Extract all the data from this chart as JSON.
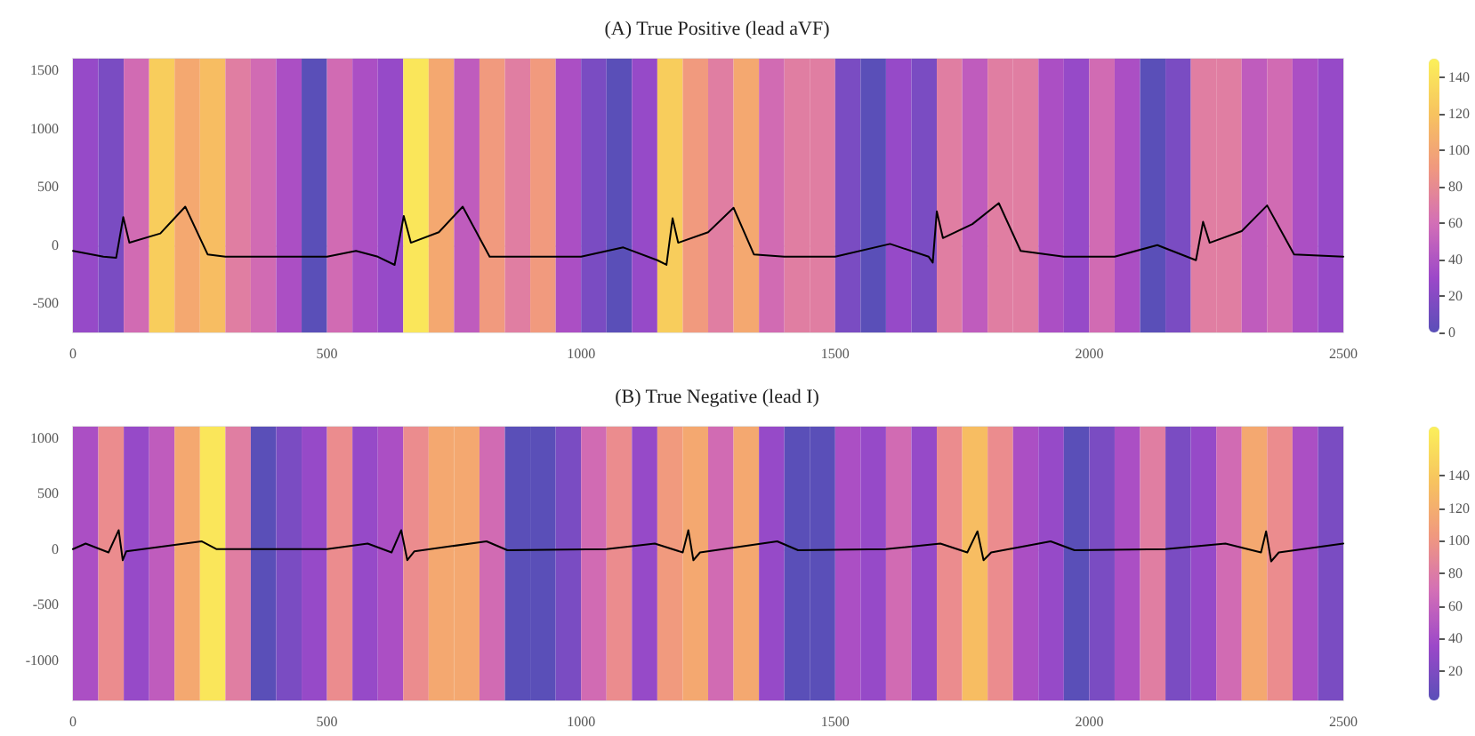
{
  "chart_data": [
    {
      "type": "line",
      "title": "(A) True Positive (lead aVF)",
      "clim": [
        0,
        150
      ],
      "cticks": [
        0,
        20,
        40,
        60,
        80,
        100,
        120,
        140
      ],
      "xlim": [
        0,
        2500
      ],
      "xticks": [
        0,
        500,
        1000,
        1500,
        2000,
        2500
      ],
      "ylim": [
        -750,
        1600
      ],
      "yticks": [
        -500,
        0,
        500,
        1000,
        1500
      ],
      "marker": "none",
      "line_style": "solid",
      "bands": [
        {
          "axis": "x",
          "from": 0,
          "to": 50,
          "color": "#964ac8"
        },
        {
          "axis": "x",
          "from": 50,
          "to": 100,
          "color": "#7a4cc2"
        },
        {
          "axis": "x",
          "from": 100,
          "to": 150,
          "color": "#d16bb3"
        },
        {
          "axis": "x",
          "from": 150,
          "to": 200,
          "color": "#f8cd5c"
        },
        {
          "axis": "x",
          "from": 200,
          "to": 250,
          "color": "#f4a870"
        },
        {
          "axis": "x",
          "from": 250,
          "to": 300,
          "color": "#f7bd62"
        },
        {
          "axis": "x",
          "from": 300,
          "to": 350,
          "color": "#e07ea2"
        },
        {
          "axis": "x",
          "from": 350,
          "to": 400,
          "color": "#d16bb3"
        },
        {
          "axis": "x",
          "from": 400,
          "to": 450,
          "color": "#ab4fc4"
        },
        {
          "axis": "x",
          "from": 450,
          "to": 500,
          "color": "#5a4fb8"
        },
        {
          "axis": "x",
          "from": 500,
          "to": 550,
          "color": "#d16bb3"
        },
        {
          "axis": "x",
          "from": 550,
          "to": 600,
          "color": "#ab4fc4"
        },
        {
          "axis": "x",
          "from": 600,
          "to": 650,
          "color": "#964ac8"
        },
        {
          "axis": "x",
          "from": 650,
          "to": 700,
          "color": "#fae65a"
        },
        {
          "axis": "x",
          "from": 700,
          "to": 750,
          "color": "#f4a870"
        },
        {
          "axis": "x",
          "from": 750,
          "to": 800,
          "color": "#bf5cbd"
        },
        {
          "axis": "x",
          "from": 800,
          "to": 850,
          "color": "#f19a7e"
        },
        {
          "axis": "x",
          "from": 850,
          "to": 900,
          "color": "#e07ea2"
        },
        {
          "axis": "x",
          "from": 900,
          "to": 950,
          "color": "#f19a7e"
        },
        {
          "axis": "x",
          "from": 950,
          "to": 1000,
          "color": "#ab4fc4"
        },
        {
          "axis": "x",
          "from": 1000,
          "to": 1050,
          "color": "#7a4cc2"
        },
        {
          "axis": "x",
          "from": 1050,
          "to": 1100,
          "color": "#5a4fb8"
        },
        {
          "axis": "x",
          "from": 1100,
          "to": 1150,
          "color": "#964ac8"
        },
        {
          "axis": "x",
          "from": 1150,
          "to": 1200,
          "color": "#f8cd5c"
        },
        {
          "axis": "x",
          "from": 1200,
          "to": 1250,
          "color": "#f19a7e"
        },
        {
          "axis": "x",
          "from": 1250,
          "to": 1300,
          "color": "#e07ea2"
        },
        {
          "axis": "x",
          "from": 1300,
          "to": 1350,
          "color": "#f4a870"
        },
        {
          "axis": "x",
          "from": 1350,
          "to": 1400,
          "color": "#d16bb3"
        },
        {
          "axis": "x",
          "from": 1400,
          "to": 1450,
          "color": "#e07ea2"
        },
        {
          "axis": "x",
          "from": 1450,
          "to": 1500,
          "color": "#e07ea2"
        },
        {
          "axis": "x",
          "from": 1500,
          "to": 1550,
          "color": "#7a4cc2"
        },
        {
          "axis": "x",
          "from": 1550,
          "to": 1600,
          "color": "#5a4fb8"
        },
        {
          "axis": "x",
          "from": 1600,
          "to": 1650,
          "color": "#964ac8"
        },
        {
          "axis": "x",
          "from": 1650,
          "to": 1700,
          "color": "#7a4cc2"
        },
        {
          "axis": "x",
          "from": 1700,
          "to": 1750,
          "color": "#e07ea2"
        },
        {
          "axis": "x",
          "from": 1750,
          "to": 1800,
          "color": "#bf5cbd"
        },
        {
          "axis": "x",
          "from": 1800,
          "to": 1850,
          "color": "#e07ea2"
        },
        {
          "axis": "x",
          "from": 1850,
          "to": 1900,
          "color": "#e07ea2"
        },
        {
          "axis": "x",
          "from": 1900,
          "to": 1950,
          "color": "#ab4fc4"
        },
        {
          "axis": "x",
          "from": 1950,
          "to": 2000,
          "color": "#964ac8"
        },
        {
          "axis": "x",
          "from": 2000,
          "to": 2050,
          "color": "#d16bb3"
        },
        {
          "axis": "x",
          "from": 2050,
          "to": 2100,
          "color": "#ab4fc4"
        },
        {
          "axis": "x",
          "from": 2100,
          "to": 2150,
          "color": "#5a4fb8"
        },
        {
          "axis": "x",
          "from": 2150,
          "to": 2200,
          "color": "#7a4cc2"
        },
        {
          "axis": "x",
          "from": 2200,
          "to": 2250,
          "color": "#e07ea2"
        },
        {
          "axis": "x",
          "from": 2250,
          "to": 2300,
          "color": "#e07ea2"
        },
        {
          "axis": "x",
          "from": 2300,
          "to": 2350,
          "color": "#bf5cbd"
        },
        {
          "axis": "x",
          "from": 2350,
          "to": 2400,
          "color": "#d16bb3"
        },
        {
          "axis": "x",
          "from": 2400,
          "to": 2450,
          "color": "#ab4fc4"
        },
        {
          "axis": "x",
          "from": 2450,
          "to": 2500,
          "color": "#964ac8"
        }
      ],
      "series": [
        {
          "color": "#000000",
          "x": [
            0,
            60,
            85,
            99,
            111,
            172,
            221,
            265,
            300,
            400,
            500,
            557,
            600,
            633,
            651,
            665,
            720,
            767,
            820,
            900,
            1000,
            1083,
            1150,
            1168,
            1180,
            1191,
            1250,
            1300,
            1340,
            1400,
            1500,
            1608,
            1684,
            1692,
            1700,
            1712,
            1770,
            1822,
            1865,
            1950,
            2050,
            2134,
            2210,
            2224,
            2237,
            2300,
            2350,
            2403,
            2500
          ],
          "values": [
            -50,
            -100,
            -110,
            240,
            20,
            100,
            330,
            -80,
            -100,
            -100,
            -100,
            -50,
            -100,
            -170,
            250,
            20,
            110,
            330,
            -100,
            -100,
            -100,
            -20,
            -130,
            -170,
            230,
            20,
            110,
            320,
            -80,
            -100,
            -100,
            10,
            -100,
            -150,
            290,
            60,
            180,
            360,
            -50,
            -100,
            -100,
            0,
            -130,
            200,
            20,
            120,
            340,
            -80,
            -100
          ]
        }
      ]
    },
    {
      "type": "line",
      "title": "(B) True Negative (lead I)",
      "clim": [
        2,
        170
      ],
      "cticks": [
        20,
        40,
        60,
        80,
        100,
        120,
        140
      ],
      "xlim": [
        0,
        2500
      ],
      "xticks": [
        0,
        500,
        1000,
        1500,
        2000,
        2500
      ],
      "ylim": [
        -1360,
        1100
      ],
      "yticks": [
        -1000,
        -500,
        0,
        500,
        1000
      ],
      "marker": "none",
      "line_style": "solid",
      "bands": [
        {
          "axis": "x",
          "from": 0,
          "to": 50,
          "color": "#ab4fc4"
        },
        {
          "axis": "x",
          "from": 50,
          "to": 100,
          "color": "#eb8c8e"
        },
        {
          "axis": "x",
          "from": 100,
          "to": 150,
          "color": "#964ac8"
        },
        {
          "axis": "x",
          "from": 150,
          "to": 200,
          "color": "#bf5cbd"
        },
        {
          "axis": "x",
          "from": 200,
          "to": 250,
          "color": "#f4a870"
        },
        {
          "axis": "x",
          "from": 250,
          "to": 300,
          "color": "#fae65a"
        },
        {
          "axis": "x",
          "from": 300,
          "to": 350,
          "color": "#e07ea2"
        },
        {
          "axis": "x",
          "from": 350,
          "to": 400,
          "color": "#5a4fb8"
        },
        {
          "axis": "x",
          "from": 400,
          "to": 450,
          "color": "#7a4cc2"
        },
        {
          "axis": "x",
          "from": 450,
          "to": 500,
          "color": "#964ac8"
        },
        {
          "axis": "x",
          "from": 500,
          "to": 550,
          "color": "#eb8c8e"
        },
        {
          "axis": "x",
          "from": 550,
          "to": 600,
          "color": "#964ac8"
        },
        {
          "axis": "x",
          "from": 600,
          "to": 650,
          "color": "#ab4fc4"
        },
        {
          "axis": "x",
          "from": 650,
          "to": 700,
          "color": "#eb8c8e"
        },
        {
          "axis": "x",
          "from": 700,
          "to": 750,
          "color": "#f4a870"
        },
        {
          "axis": "x",
          "from": 750,
          "to": 800,
          "color": "#f4a870"
        },
        {
          "axis": "x",
          "from": 800,
          "to": 850,
          "color": "#d16bb3"
        },
        {
          "axis": "x",
          "from": 850,
          "to": 900,
          "color": "#5a4fb8"
        },
        {
          "axis": "x",
          "from": 900,
          "to": 950,
          "color": "#5a4fb8"
        },
        {
          "axis": "x",
          "from": 950,
          "to": 1000,
          "color": "#7a4cc2"
        },
        {
          "axis": "x",
          "from": 1000,
          "to": 1050,
          "color": "#d16bb3"
        },
        {
          "axis": "x",
          "from": 1050,
          "to": 1100,
          "color": "#eb8c8e"
        },
        {
          "axis": "x",
          "from": 1100,
          "to": 1150,
          "color": "#964ac8"
        },
        {
          "axis": "x",
          "from": 1150,
          "to": 1200,
          "color": "#f19a7e"
        },
        {
          "axis": "x",
          "from": 1200,
          "to": 1250,
          "color": "#f4a870"
        },
        {
          "axis": "x",
          "from": 1250,
          "to": 1300,
          "color": "#d16bb3"
        },
        {
          "axis": "x",
          "from": 1300,
          "to": 1350,
          "color": "#f4a870"
        },
        {
          "axis": "x",
          "from": 1350,
          "to": 1400,
          "color": "#964ac8"
        },
        {
          "axis": "x",
          "from": 1400,
          "to": 1450,
          "color": "#5a4fb8"
        },
        {
          "axis": "x",
          "from": 1450,
          "to": 1500,
          "color": "#5a4fb8"
        },
        {
          "axis": "x",
          "from": 1500,
          "to": 1550,
          "color": "#ab4fc4"
        },
        {
          "axis": "x",
          "from": 1550,
          "to": 1600,
          "color": "#964ac8"
        },
        {
          "axis": "x",
          "from": 1600,
          "to": 1650,
          "color": "#d16bb3"
        },
        {
          "axis": "x",
          "from": 1650,
          "to": 1700,
          "color": "#964ac8"
        },
        {
          "axis": "x",
          "from": 1700,
          "to": 1750,
          "color": "#eb8c8e"
        },
        {
          "axis": "x",
          "from": 1750,
          "to": 1800,
          "color": "#f7bd62"
        },
        {
          "axis": "x",
          "from": 1800,
          "to": 1850,
          "color": "#eb8c8e"
        },
        {
          "axis": "x",
          "from": 1850,
          "to": 1900,
          "color": "#ab4fc4"
        },
        {
          "axis": "x",
          "from": 1900,
          "to": 1950,
          "color": "#964ac8"
        },
        {
          "axis": "x",
          "from": 1950,
          "to": 2000,
          "color": "#5a4fb8"
        },
        {
          "axis": "x",
          "from": 2000,
          "to": 2050,
          "color": "#7a4cc2"
        },
        {
          "axis": "x",
          "from": 2050,
          "to": 2100,
          "color": "#ab4fc4"
        },
        {
          "axis": "x",
          "from": 2100,
          "to": 2150,
          "color": "#e07ea2"
        },
        {
          "axis": "x",
          "from": 2150,
          "to": 2200,
          "color": "#7a4cc2"
        },
        {
          "axis": "x",
          "from": 2200,
          "to": 2250,
          "color": "#964ac8"
        },
        {
          "axis": "x",
          "from": 2250,
          "to": 2300,
          "color": "#d16bb3"
        },
        {
          "axis": "x",
          "from": 2300,
          "to": 2350,
          "color": "#f4a870"
        },
        {
          "axis": "x",
          "from": 2350,
          "to": 2400,
          "color": "#eb8c8e"
        },
        {
          "axis": "x",
          "from": 2400,
          "to": 2450,
          "color": "#ab4fc4"
        },
        {
          "axis": "x",
          "from": 2450,
          "to": 2500,
          "color": "#7a4cc2"
        }
      ],
      "series": [
        {
          "color": "#000000",
          "x": [
            0,
            25,
            70,
            90,
            98,
            105,
            253,
            282,
            500,
            580,
            627,
            646,
            658,
            672,
            814,
            855,
            1050,
            1145,
            1200,
            1211,
            1221,
            1234,
            1386,
            1427,
            1600,
            1707,
            1760,
            1780,
            1792,
            1807,
            1924,
            1971,
            2150,
            2268,
            2338,
            2348,
            2358,
            2373,
            2500
          ],
          "values": [
            0,
            50,
            -30,
            170,
            -100,
            -20,
            70,
            0,
            0,
            50,
            -30,
            170,
            -100,
            -20,
            70,
            -10,
            0,
            50,
            -30,
            170,
            -100,
            -30,
            70,
            -10,
            0,
            50,
            -30,
            160,
            -100,
            -30,
            70,
            -10,
            0,
            50,
            -30,
            160,
            -110,
            -30,
            50
          ]
        }
      ]
    }
  ]
}
